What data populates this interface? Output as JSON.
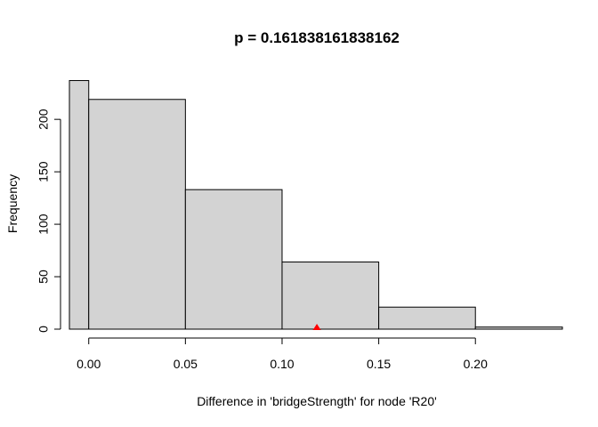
{
  "chart_data": {
    "type": "bar",
    "title": "p = 0.161838161838162",
    "xlabel": "Difference in 'bridgeStrength' for node 'R20'",
    "ylabel": "Frequency",
    "xlim": [
      -0.01,
      0.245
    ],
    "ylim": [
      0,
      240
    ],
    "x_ticks": [
      {
        "value": 0.0,
        "label": "0.00"
      },
      {
        "value": 0.05,
        "label": "0.05"
      },
      {
        "value": 0.1,
        "label": "0.10"
      },
      {
        "value": 0.15,
        "label": "0.15"
      },
      {
        "value": 0.2,
        "label": "0.20"
      }
    ],
    "y_ticks": [
      {
        "value": 0,
        "label": "0"
      },
      {
        "value": 50,
        "label": "50"
      },
      {
        "value": 100,
        "label": "100"
      },
      {
        "value": 150,
        "label": "150"
      },
      {
        "value": 200,
        "label": "200"
      }
    ],
    "bins": [
      {
        "start": -0.01,
        "end": 0.0,
        "count": 237
      },
      {
        "start": 0.0,
        "end": 0.05,
        "count": 219
      },
      {
        "start": 0.05,
        "end": 0.1,
        "count": 133
      },
      {
        "start": 0.1,
        "end": 0.15,
        "count": 64
      },
      {
        "start": 0.15,
        "end": 0.2,
        "count": 21
      },
      {
        "start": 0.2,
        "end": 0.245,
        "count": 2
      }
    ],
    "observed_marker": {
      "value": 0.118,
      "color": "#ff0000"
    },
    "grid": false,
    "legend": "none"
  }
}
